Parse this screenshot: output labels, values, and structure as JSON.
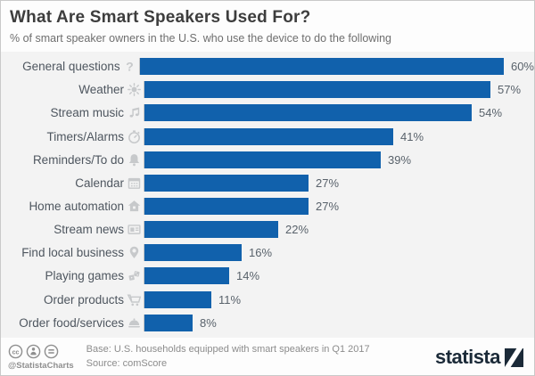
{
  "chart_data": {
    "type": "bar",
    "orientation": "horizontal",
    "title": "What Are Smart Speakers Used For?",
    "subtitle": "% of smart speaker owners in the U.S. who use the device to do the following",
    "categories": [
      "General questions",
      "Weather",
      "Stream music",
      "Timers/Alarms",
      "Reminders/To do",
      "Calendar",
      "Home automation",
      "Stream news",
      "Find local business",
      "Playing games",
      "Order products",
      "Order food/services"
    ],
    "values": [
      60,
      57,
      54,
      41,
      39,
      27,
      27,
      22,
      16,
      14,
      11,
      8
    ],
    "unit": "%",
    "icons": [
      "question-icon",
      "sun-icon",
      "music-note-icon",
      "stopwatch-icon",
      "bell-icon",
      "calendar-icon",
      "house-icon",
      "news-icon",
      "map-pin-icon",
      "dice-icon",
      "shopping-cart-icon",
      "cloche-icon"
    ],
    "xlim": [
      0,
      60
    ],
    "grid": "off",
    "legend": "none",
    "bar_color": "#1161ac",
    "plot_background": "#f3f3f3",
    "watermark": "person-speaking-to-smart-speaker-icon"
  },
  "footer": {
    "license_icons": [
      "cc-icon",
      "cc-by-icon",
      "cc-nd-icon"
    ],
    "handle": "@StatistaCharts",
    "base": "Base: U.S. households equipped with smart speakers in Q1 2017",
    "source": "Source: comScore",
    "brand": "statista",
    "brand_color": "#1b2a38"
  }
}
